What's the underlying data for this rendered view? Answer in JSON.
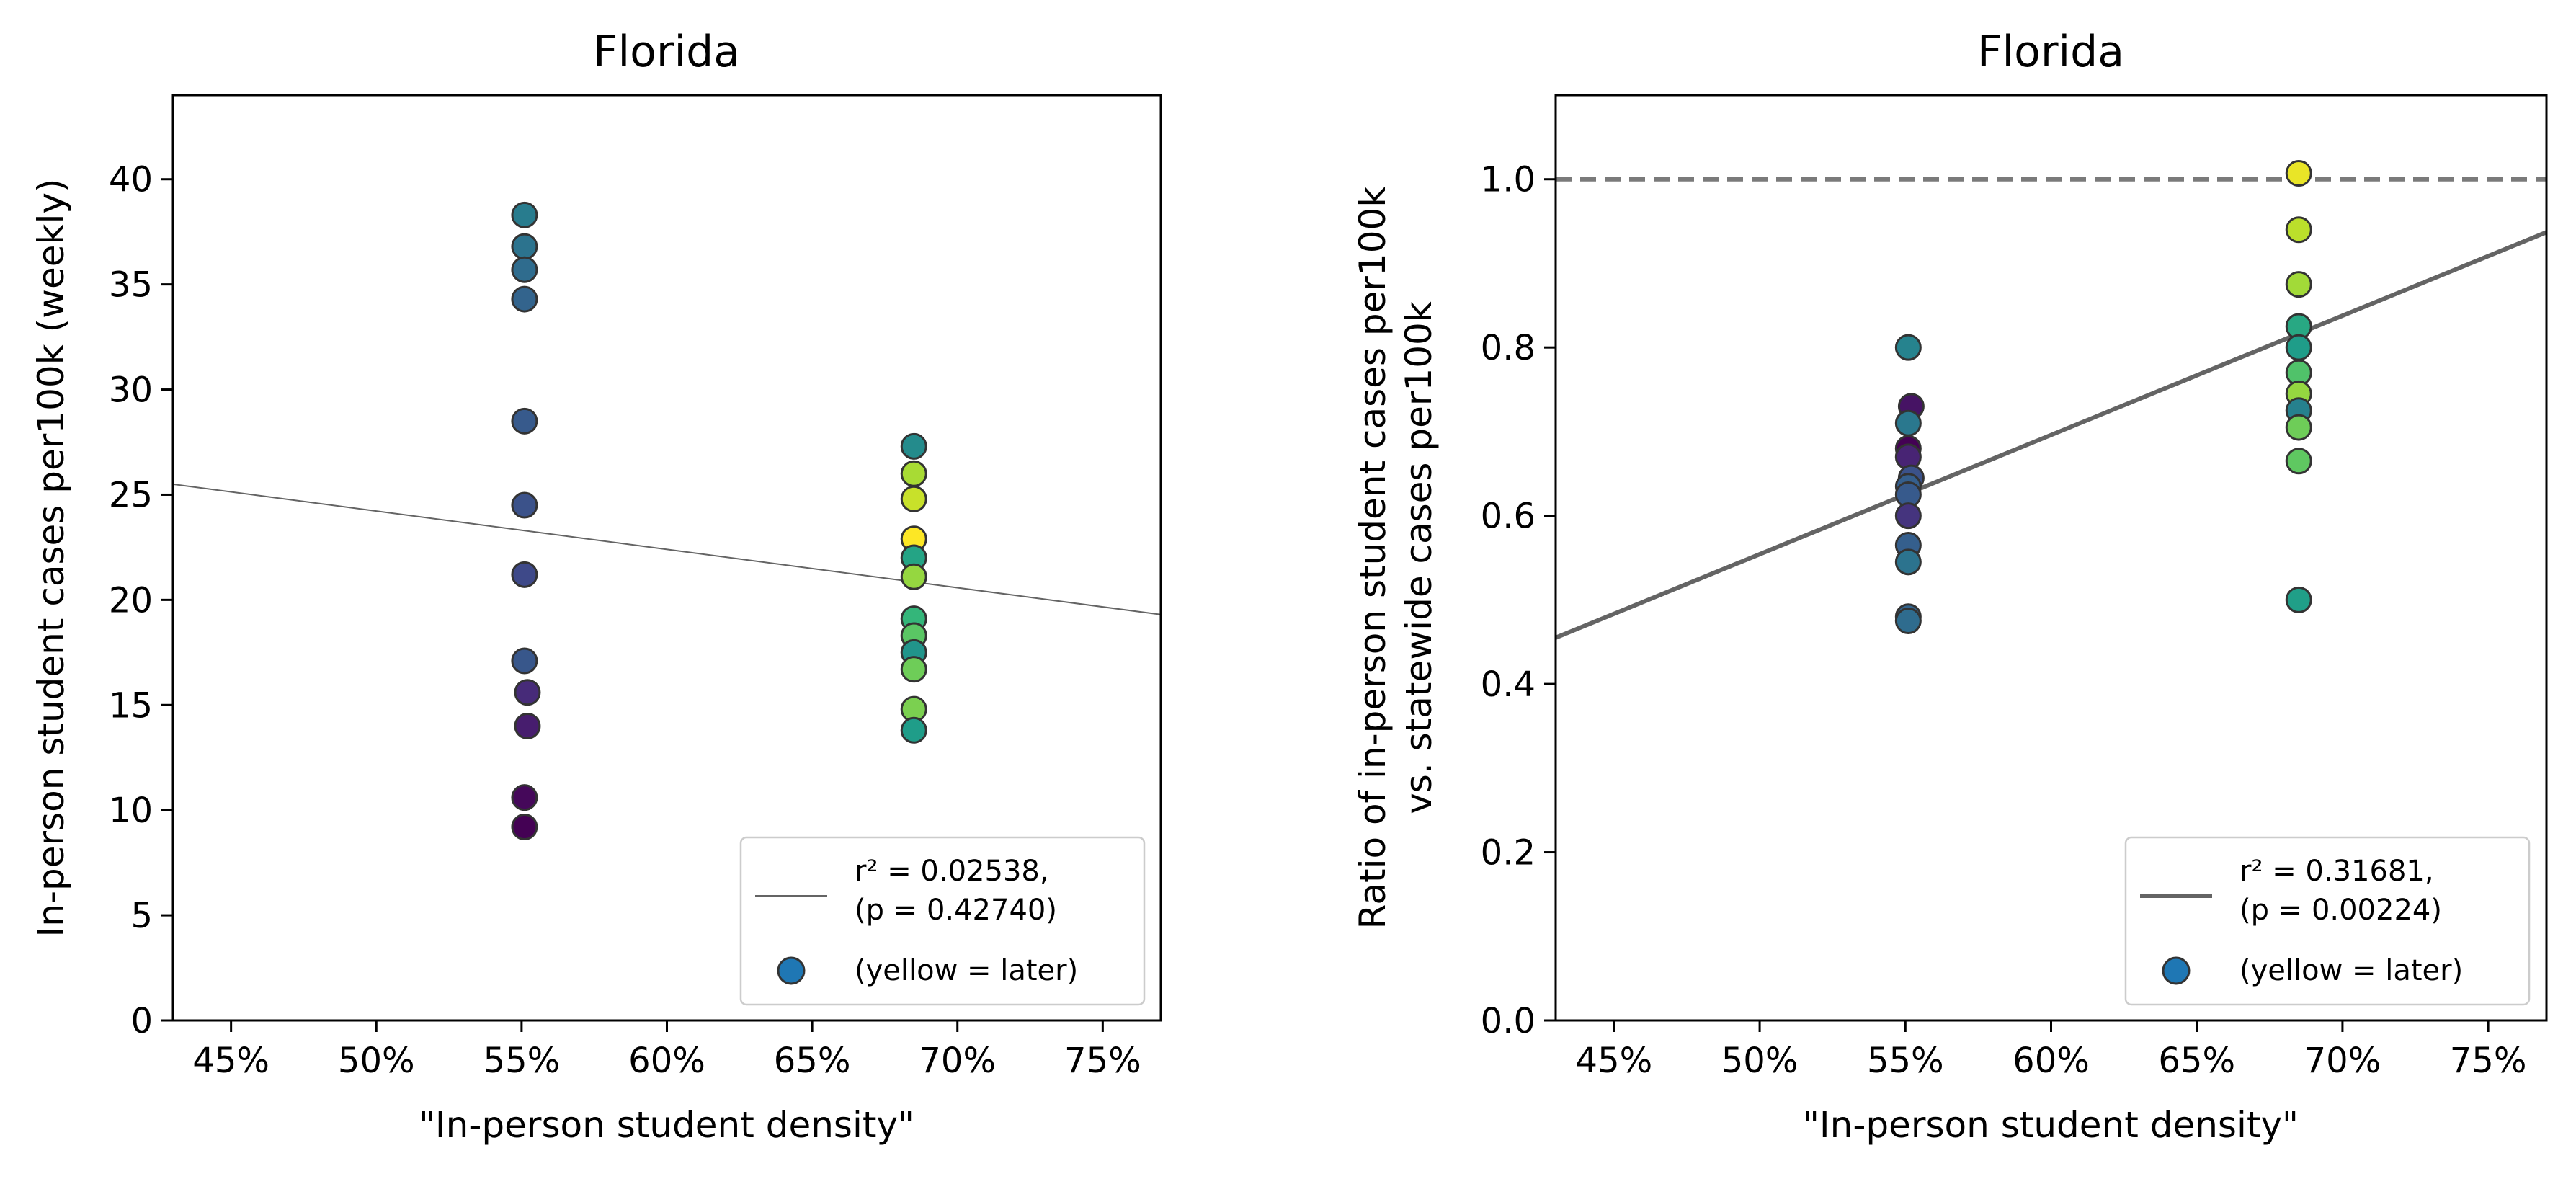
{
  "colors": {
    "background": "#ffffff",
    "axes": "#000000",
    "marker_edge": "#333333",
    "fit_line": "#646464",
    "ref_line": "#7a7a7a",
    "legend_marker": "#1f77b4",
    "legend_border": "#cccccc"
  },
  "chart_data": [
    {
      "type": "scatter",
      "title": "Florida",
      "xlabel": "\"In-person student density\"",
      "ylabel": "In-person student cases per100k (weekly)",
      "xlim": [
        0.43,
        0.77
      ],
      "ylim": [
        0,
        44
      ],
      "xticks": [
        0.45,
        0.5,
        0.55,
        0.6,
        0.65,
        0.7,
        0.75
      ],
      "xtick_labels": [
        "45%",
        "50%",
        "55%",
        "60%",
        "65%",
        "70%",
        "75%"
      ],
      "yticks": [
        0,
        5,
        10,
        15,
        20,
        25,
        30,
        35,
        40
      ],
      "ytick_labels": [
        "0",
        "5",
        "10",
        "15",
        "20",
        "25",
        "30",
        "35",
        "40"
      ],
      "grid": false,
      "legend_position": "lower-right",
      "colormap": "viridis",
      "points": [
        {
          "x": 0.551,
          "y": 38.3,
          "c": 0.42
        },
        {
          "x": 0.551,
          "y": 36.8,
          "c": 0.38
        },
        {
          "x": 0.551,
          "y": 35.7,
          "c": 0.35
        },
        {
          "x": 0.551,
          "y": 34.3,
          "c": 0.32
        },
        {
          "x": 0.551,
          "y": 28.5,
          "c": 0.28
        },
        {
          "x": 0.551,
          "y": 24.5,
          "c": 0.25
        },
        {
          "x": 0.551,
          "y": 21.2,
          "c": 0.22
        },
        {
          "x": 0.551,
          "y": 17.1,
          "c": 0.27
        },
        {
          "x": 0.552,
          "y": 15.6,
          "c": 0.12
        },
        {
          "x": 0.552,
          "y": 14.0,
          "c": 0.08
        },
        {
          "x": 0.551,
          "y": 10.6,
          "c": 0.02
        },
        {
          "x": 0.551,
          "y": 9.2,
          "c": 0.0
        },
        {
          "x": 0.685,
          "y": 27.3,
          "c": 0.48
        },
        {
          "x": 0.685,
          "y": 26.0,
          "c": 0.87
        },
        {
          "x": 0.685,
          "y": 24.8,
          "c": 0.92
        },
        {
          "x": 0.685,
          "y": 22.9,
          "c": 1.0
        },
        {
          "x": 0.685,
          "y": 22.0,
          "c": 0.58
        },
        {
          "x": 0.685,
          "y": 21.1,
          "c": 0.84
        },
        {
          "x": 0.685,
          "y": 19.1,
          "c": 0.66
        },
        {
          "x": 0.685,
          "y": 18.3,
          "c": 0.74
        },
        {
          "x": 0.685,
          "y": 17.5,
          "c": 0.52
        },
        {
          "x": 0.685,
          "y": 16.7,
          "c": 0.78
        },
        {
          "x": 0.685,
          "y": 14.8,
          "c": 0.8
        },
        {
          "x": 0.685,
          "y": 13.8,
          "c": 0.55
        }
      ],
      "fit_line": {
        "x": [
          0.43,
          0.77
        ],
        "y": [
          25.5,
          19.3
        ],
        "style": "thin"
      },
      "reference_line": null,
      "legend": {
        "line_label_1": "r² = 0.02538,",
        "line_label_2": "(p = 0.42740)",
        "marker_label": "(yellow = later)"
      }
    },
    {
      "type": "scatter",
      "title": "Florida",
      "xlabel": "\"In-person student density\"",
      "ylabel_line1": "Ratio of in-person student cases per100k",
      "ylabel_line2": "vs. statewide cases per100k",
      "xlim": [
        0.43,
        0.77
      ],
      "ylim": [
        0.0,
        1.1
      ],
      "xticks": [
        0.45,
        0.5,
        0.55,
        0.6,
        0.65,
        0.7,
        0.75
      ],
      "xtick_labels": [
        "45%",
        "50%",
        "55%",
        "60%",
        "65%",
        "70%",
        "75%"
      ],
      "yticks": [
        0.0,
        0.2,
        0.4,
        0.6,
        0.8,
        1.0
      ],
      "ytick_labels": [
        "0.0",
        "0.2",
        "0.4",
        "0.6",
        "0.8",
        "1.0"
      ],
      "grid": false,
      "legend_position": "lower-right",
      "colormap": "viridis",
      "points": [
        {
          "x": 0.551,
          "y": 0.8,
          "c": 0.45
        },
        {
          "x": 0.552,
          "y": 0.73,
          "c": 0.05
        },
        {
          "x": 0.551,
          "y": 0.71,
          "c": 0.4
        },
        {
          "x": 0.551,
          "y": 0.68,
          "c": 0.0
        },
        {
          "x": 0.551,
          "y": 0.67,
          "c": 0.1
        },
        {
          "x": 0.552,
          "y": 0.645,
          "c": 0.25
        },
        {
          "x": 0.551,
          "y": 0.635,
          "c": 0.3
        },
        {
          "x": 0.551,
          "y": 0.625,
          "c": 0.28
        },
        {
          "x": 0.551,
          "y": 0.6,
          "c": 0.15
        },
        {
          "x": 0.551,
          "y": 0.565,
          "c": 0.3
        },
        {
          "x": 0.551,
          "y": 0.545,
          "c": 0.38
        },
        {
          "x": 0.551,
          "y": 0.48,
          "c": 0.32
        },
        {
          "x": 0.551,
          "y": 0.475,
          "c": 0.35
        },
        {
          "x": 0.685,
          "y": 1.007,
          "c": 0.97
        },
        {
          "x": 0.685,
          "y": 0.94,
          "c": 0.9
        },
        {
          "x": 0.685,
          "y": 0.875,
          "c": 0.86
        },
        {
          "x": 0.685,
          "y": 0.825,
          "c": 0.6
        },
        {
          "x": 0.685,
          "y": 0.8,
          "c": 0.55
        },
        {
          "x": 0.685,
          "y": 0.77,
          "c": 0.72
        },
        {
          "x": 0.685,
          "y": 0.745,
          "c": 0.84
        },
        {
          "x": 0.685,
          "y": 0.725,
          "c": 0.44
        },
        {
          "x": 0.685,
          "y": 0.705,
          "c": 0.78
        },
        {
          "x": 0.685,
          "y": 0.665,
          "c": 0.75
        },
        {
          "x": 0.685,
          "y": 0.5,
          "c": 0.56
        }
      ],
      "fit_line": {
        "x": [
          0.43,
          0.77
        ],
        "y": [
          0.455,
          0.937
        ],
        "style": "thick"
      },
      "reference_line": {
        "y": 1.0,
        "style": "dashed"
      },
      "legend": {
        "line_label_1": "r² = 0.31681,",
        "line_label_2": "(p = 0.00224)",
        "marker_label": "(yellow = later)"
      }
    }
  ]
}
